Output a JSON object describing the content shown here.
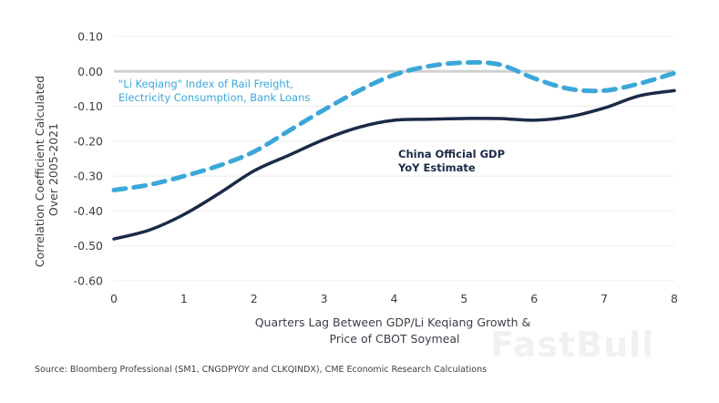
{
  "chart_data": {
    "type": "line",
    "title": "",
    "xlabel": "Quarters Lag Between GDP/Li Keqiang Growth & Price of CBOT Soymeal",
    "xlabel_lines": [
      "Quarters Lag Between GDP/Li Keqiang Growth &",
      "Price of CBOT Soymeal"
    ],
    "ylabel": "Correlation Coefficient Calculated Over 2005-2021",
    "ylabel_lines": [
      "Correlation Coefficient Calculated",
      "Over 2005-2021"
    ],
    "xlim": [
      0,
      8
    ],
    "ylim": [
      -0.6,
      0.1
    ],
    "x_ticks": [
      "0",
      "1",
      "2",
      "3",
      "4",
      "5",
      "6",
      "7",
      "8"
    ],
    "y_ticks": [
      "0.10",
      "0.00",
      "-0.10",
      "-0.20",
      "-0.30",
      "-0.40",
      "-0.50",
      "-0.60"
    ],
    "y_tick_values": [
      0.1,
      0.0,
      -0.1,
      -0.2,
      -0.3,
      -0.4,
      -0.5,
      -0.6
    ],
    "grid": "horizontal",
    "x": [
      0,
      0.5,
      1,
      1.5,
      2,
      2.5,
      3,
      3.5,
      4,
      4.5,
      5,
      5.5,
      6,
      6.5,
      7,
      7.5,
      8
    ],
    "series": [
      {
        "name": "\"Li Keqiang\" Index of Rail Freight, Electricity Consumption, Bank Loans",
        "style": "dashed",
        "color": "#3ba7d9",
        "values": [
          -0.34,
          -0.325,
          -0.3,
          -0.27,
          -0.23,
          -0.17,
          -0.11,
          -0.055,
          -0.01,
          0.015,
          0.025,
          0.02,
          -0.02,
          -0.05,
          -0.055,
          -0.035,
          -0.005
        ]
      },
      {
        "name": "China Official GDP YoY Estimate",
        "style": "solid",
        "color": "#1b2a47",
        "values": [
          -0.48,
          -0.455,
          -0.41,
          -0.35,
          -0.285,
          -0.24,
          -0.195,
          -0.16,
          -0.14,
          -0.137,
          -0.135,
          -0.135,
          -0.14,
          -0.13,
          -0.105,
          -0.07,
          -0.055
        ]
      }
    ],
    "annotations": [
      {
        "series": 0,
        "lines": [
          "\"Li Keqiang\" Index of Rail Freight,",
          "Electricity Consumption, Bank Loans"
        ],
        "color": "#3ba7d9"
      },
      {
        "series": 1,
        "lines": [
          "China Official GDP",
          "YoY Estimate"
        ],
        "color": "#1b2a47"
      }
    ],
    "zero_line_color": "#d0d0d0",
    "grid_color": "#ececec"
  },
  "source": "Source: Bloomberg Professional (SM1, CNGDPYOY and CLKQINDX), CME Economic Research Calculations",
  "watermark": "FastBull"
}
